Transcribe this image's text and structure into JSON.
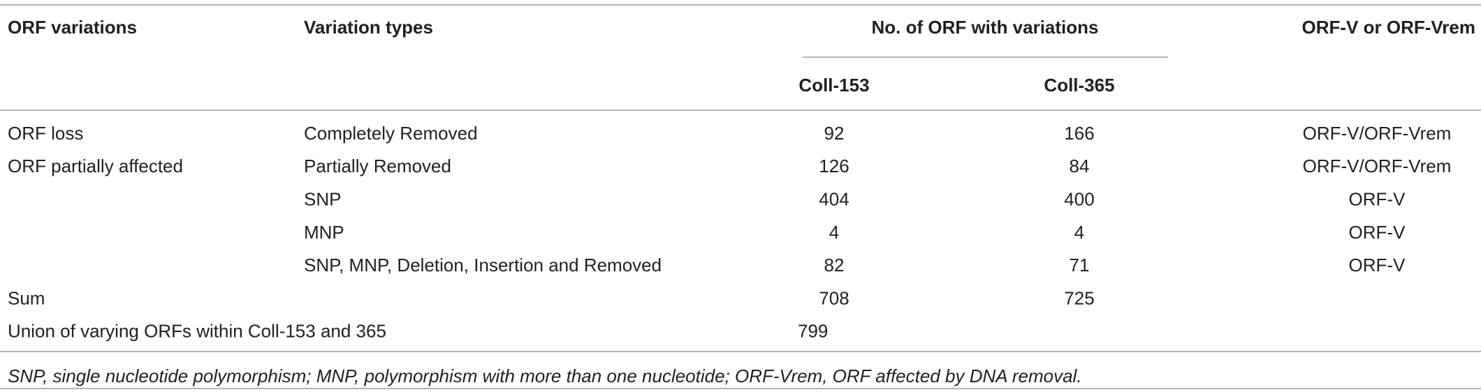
{
  "table": {
    "header": [
      "ORF variations",
      "Variation types",
      "No. of ORF with variations",
      "ORF-V or ORF-Vrem"
    ],
    "subheader": [
      "Coll-153",
      "Coll-365"
    ],
    "rows": [
      {
        "variation": "ORF loss",
        "type": "Completely Removed",
        "coll153": 92,
        "coll365": 166,
        "orf": "ORF-V/ORF-Vrem"
      },
      {
        "variation": "ORF partially affected",
        "type": "Partially Removed",
        "coll153": 126,
        "coll365": 84,
        "orf": "ORF-V/ORF-Vrem"
      },
      {
        "type": "SNP",
        "coll153": 404,
        "coll365": 400,
        "orf": "ORF-V"
      },
      {
        "type": "MNP",
        "coll153": 4,
        "coll365": 4,
        "orf": "ORF-V"
      },
      {
        "type": "SNP, MNP, Deletion, Insertion and Removed",
        "coll153": 82,
        "coll365": 71,
        "orf": "ORF-V"
      },
      {
        "variation": "Sum",
        "coll153": 708,
        "coll365": 725
      },
      {
        "variation": "Union of varying ORFs within Coll-153 and 365",
        "union": 799
      }
    ],
    "footnote": "SNP, single nucleotide polymorphism; MNP, polymorphism with more than one nucleotide; ORF-Vrem, ORF affected by DNA removal."
  }
}
